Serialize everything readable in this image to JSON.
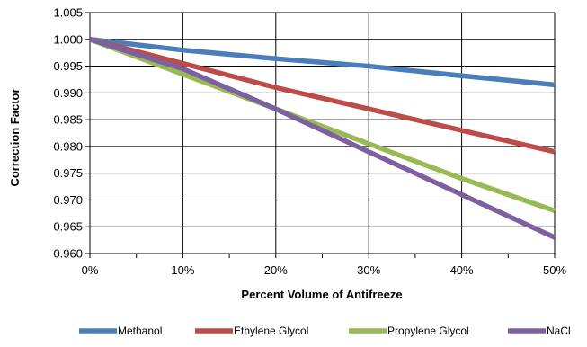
{
  "chart_data": {
    "type": "line",
    "title": "",
    "xlabel": "Percent Volume of Antifreeze",
    "ylabel": "Correction Factor",
    "x": [
      0,
      10,
      20,
      30,
      40,
      50
    ],
    "x_tick_labels": [
      "0%",
      "10%",
      "20%",
      "30%",
      "40%",
      "50%"
    ],
    "xlim": [
      0,
      50
    ],
    "ylim": [
      0.96,
      1.005
    ],
    "y_ticks": [
      0.96,
      0.965,
      0.97,
      0.975,
      0.98,
      0.985,
      0.99,
      0.995,
      1.0,
      1.005
    ],
    "y_tick_labels": [
      "0.960",
      "0.965",
      "0.970",
      "0.975",
      "0.980",
      "0.985",
      "0.990",
      "0.995",
      "1.000",
      "1.005"
    ],
    "grid": true,
    "legend_position": "bottom",
    "series": [
      {
        "name": "Methanol",
        "color": "#4a7ebb",
        "values": [
          1.0,
          0.998,
          0.9964,
          0.995,
          0.9932,
          0.9915
        ]
      },
      {
        "name": "Ethylene Glycol",
        "color": "#be4b48",
        "values": [
          1.0,
          0.9955,
          0.991,
          0.987,
          0.983,
          0.979
        ]
      },
      {
        "name": "Propylene Glycol",
        "color": "#98b954",
        "values": [
          1.0,
          0.9935,
          0.987,
          0.9805,
          0.974,
          0.968
        ]
      },
      {
        "name": "NaCl",
        "color": "#7d60a0",
        "values": [
          1.0,
          0.9945,
          0.987,
          0.979,
          0.971,
          0.963
        ]
      }
    ]
  }
}
